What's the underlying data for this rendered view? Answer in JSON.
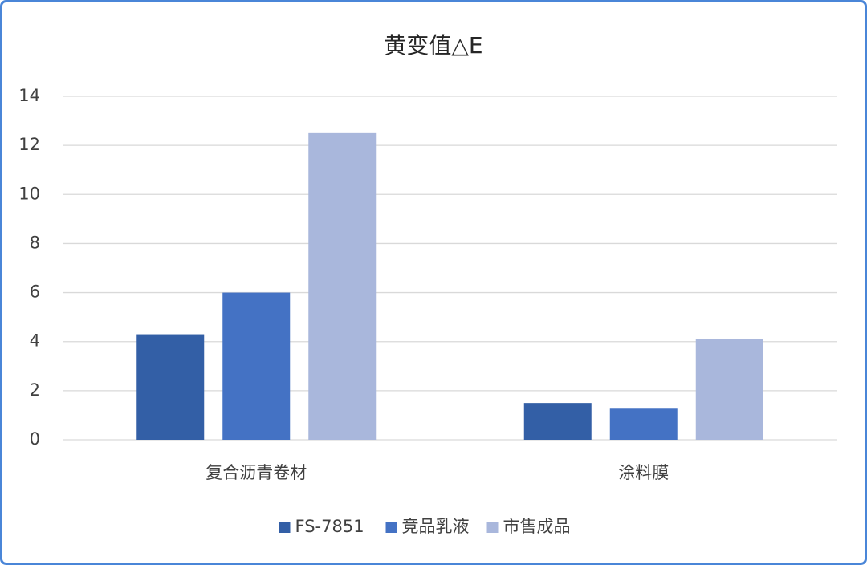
{
  "chart_data": {
    "type": "bar",
    "title": "黄变值△E",
    "categories": [
      "复合沥青卷材",
      "涂料膜"
    ],
    "series": [
      {
        "name": "FS-7851",
        "color": "#335fa6",
        "values": [
          4.3,
          1.5
        ]
      },
      {
        "name": "竞品乳液",
        "color": "#4472c4",
        "values": [
          6.0,
          1.3
        ]
      },
      {
        "name": "市售成品",
        "color": "#a9b7dc",
        "values": [
          12.5,
          4.1
        ]
      }
    ],
    "ylim": [
      0,
      14
    ],
    "yticks": [
      0,
      2,
      4,
      6,
      8,
      10,
      12,
      14
    ],
    "grid": true,
    "legend": "bottom"
  }
}
